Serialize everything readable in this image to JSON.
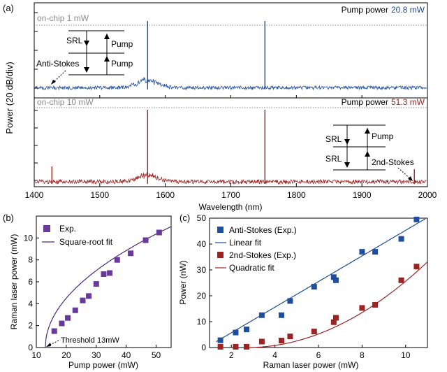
{
  "panels": {
    "a": {
      "label": "(a)"
    },
    "b": {
      "label": "(b)"
    },
    "c": {
      "label": "(c)"
    }
  },
  "colors": {
    "blue": "#1f4e9c",
    "red": "#9c2323",
    "purple": "#6a3a9a",
    "grey": "#8c8c8c"
  },
  "chart_data": [
    {
      "id": "a",
      "type": "line",
      "title": "",
      "xlabel": "Wavelength (nm)",
      "ylabel": "Power (20 dB/div)",
      "xlim": [
        1400,
        2000
      ],
      "xticks": [
        1400,
        1500,
        1600,
        1700,
        1800,
        1900,
        2000
      ],
      "xtick_labels": [
        "1400",
        "1500",
        "1600",
        "1700",
        "1800",
        "1900",
        "2000"
      ],
      "top": {
        "level_label": "on-chip 1 mW",
        "pump_label": "Pump power",
        "pump_value": "20.8 mW",
        "peaks_nm": [
          1573,
          1752
        ],
        "broad_emission_center_nm": 1573,
        "annotations": [
          "SRL",
          "Pump",
          "Pump",
          "Anti-Stokes"
        ]
      },
      "bottom": {
        "level_label": "on-chip 10 mW",
        "pump_label": "Pump power",
        "pump_value": "51.3 mW",
        "peaks_nm": [
          1427,
          1573,
          1752,
          1980
        ],
        "broad_emission_center_nm": 1573,
        "annotations": [
          "SRL",
          "SRL",
          "Pump",
          "2nd-Stokes"
        ]
      }
    },
    {
      "id": "b",
      "type": "scatter",
      "xlabel": "Pump power (mW)",
      "ylabel": "Raman laser power (mW)",
      "xlim": [
        10,
        55
      ],
      "ylim": [
        0,
        12
      ],
      "xticks": [
        10,
        20,
        30,
        40,
        50
      ],
      "yticks": [
        0,
        2,
        4,
        6,
        8,
        10
      ],
      "legend": [
        "Exp.",
        "Square-root fit"
      ],
      "annotation": "Threshold 13mW",
      "threshold_mW": 13,
      "series": [
        {
          "name": "Exp.",
          "x": [
            16,
            18.5,
            20.5,
            23,
            25.5,
            27.5,
            30,
            32.5,
            34.5,
            37,
            41.5,
            46.5,
            51
          ],
          "y": [
            1.5,
            2.2,
            2.7,
            3.4,
            4.3,
            4.7,
            5.8,
            6.7,
            6.8,
            8.0,
            8.6,
            9.8,
            10.5
          ]
        }
      ]
    },
    {
      "id": "c",
      "type": "scatter",
      "xlabel": "Raman laser power (mW)",
      "ylabel": "Power (nW)",
      "xlim": [
        1,
        11
      ],
      "ylim": [
        0,
        50
      ],
      "xticks": [
        2,
        4,
        6,
        8,
        10
      ],
      "yticks": [
        0,
        10,
        20,
        30,
        40,
        50
      ],
      "legend": [
        "Anti-Stokes (Exp.)",
        "Linear fit",
        "2nd-Stokes (Exp.)",
        "Quadratic fit"
      ],
      "series": [
        {
          "name": "Anti-Stokes (Exp.)",
          "x": [
            1.5,
            2.2,
            2.7,
            3.4,
            4.3,
            4.7,
            5.8,
            6.7,
            6.8,
            8.0,
            8.6,
            9.8,
            10.5
          ],
          "y": [
            2.8,
            5.8,
            7.0,
            12.5,
            12.5,
            18.0,
            23.5,
            27.2,
            26.0,
            37.0,
            37.0,
            42.0,
            49.5
          ]
        },
        {
          "name": "2nd-Stokes (Exp.)",
          "x": [
            1.5,
            2.2,
            2.7,
            3.4,
            4.3,
            4.7,
            5.8,
            6.7,
            6.8,
            8.0,
            8.6,
            9.8,
            10.5
          ],
          "y": [
            0.3,
            0.3,
            0.3,
            2.3,
            2.7,
            4.3,
            6.2,
            9.8,
            11.5,
            15.3,
            16.5,
            26.0,
            31.3
          ]
        }
      ]
    }
  ]
}
